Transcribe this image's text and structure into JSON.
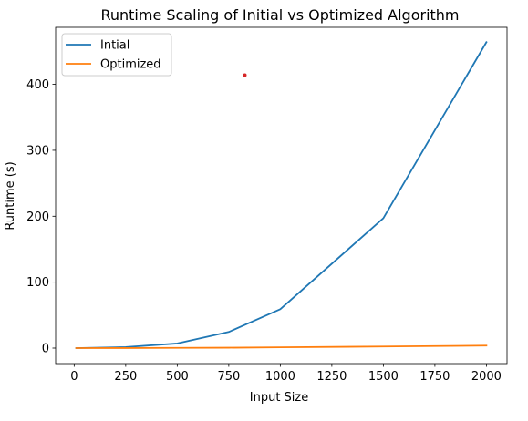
{
  "chart_data": {
    "type": "line",
    "title": "Runtime Scaling of Initial vs Optimized Algorithm",
    "xlabel": "Input Size",
    "ylabel": "Runtime (s)",
    "x": [
      10,
      250,
      500,
      750,
      1000,
      1500,
      2000
    ],
    "xlim": [
      -90,
      2100
    ],
    "ylim": [
      -23.5,
      486.5
    ],
    "xticks": [
      0,
      250,
      500,
      750,
      1000,
      1250,
      1500,
      1750,
      2000
    ],
    "yticks": [
      0,
      100,
      200,
      300,
      400
    ],
    "grid": false,
    "legend_position": "top-left",
    "series": [
      {
        "name": "Intial",
        "color": "#1f77b4",
        "values": [
          0,
          1.5,
          7,
          24.5,
          59,
          197,
          464
        ]
      },
      {
        "name": "Optimized",
        "color": "#ff7f0e",
        "values": [
          0,
          0.1,
          0.3,
          0.6,
          1.2,
          2.4,
          3.8
        ]
      }
    ],
    "annotations": [
      {
        "type": "marker",
        "x": 828,
        "y": 414,
        "color": "#d62728"
      }
    ]
  }
}
